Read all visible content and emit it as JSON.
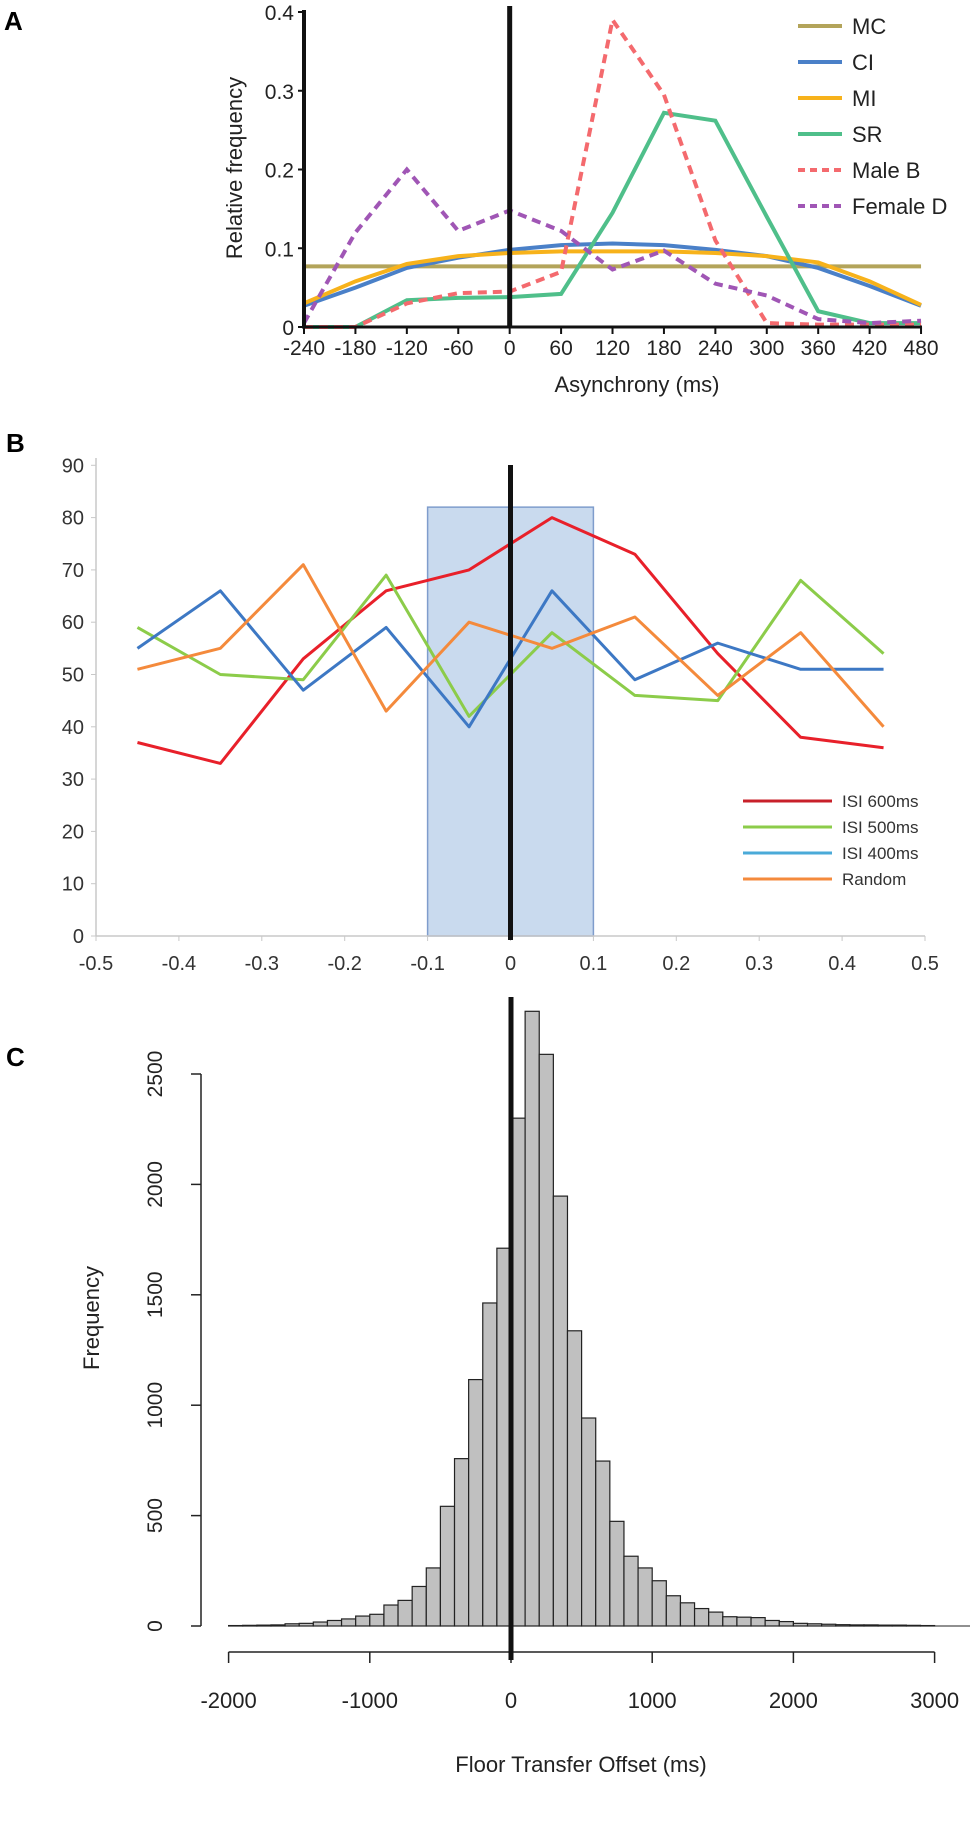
{
  "chart_data": [
    {
      "panel": "A",
      "type": "line",
      "xlabel": "Asynchrony (ms)",
      "ylabel": "Relative frequency",
      "xlim": [
        -240,
        480
      ],
      "ylim": [
        0,
        0.4
      ],
      "x": [
        -240,
        -180,
        -120,
        -60,
        0,
        60,
        120,
        180,
        240,
        300,
        360,
        420,
        480
      ],
      "xticks": [
        "-240",
        "-180",
        "-120",
        "-60",
        "0",
        "60",
        "120",
        "180",
        "240",
        "300",
        "360",
        "420",
        "480"
      ],
      "yticks": [
        0,
        0.1,
        0.2,
        0.3,
        0.4
      ],
      "ytick_labels": [
        "0",
        "0.1",
        "0.2",
        "0.3",
        "0.4"
      ],
      "vline": 0,
      "legend_position": "top-right",
      "series": [
        {
          "name": "MC",
          "color": "#b3a45a",
          "dashed": false,
          "values": [
            0.077,
            0.077,
            0.077,
            0.077,
            0.077,
            0.077,
            0.077,
            0.077,
            0.077,
            0.077,
            0.077,
            0.077,
            0.077
          ]
        },
        {
          "name": "CI",
          "color": "#4a80c8",
          "dashed": false,
          "values": [
            0.027,
            0.05,
            0.075,
            0.088,
            0.098,
            0.104,
            0.106,
            0.104,
            0.098,
            0.09,
            0.075,
            0.052,
            0.027
          ]
        },
        {
          "name": "MI",
          "color": "#f7b21b",
          "dashed": false,
          "values": [
            0.03,
            0.058,
            0.08,
            0.09,
            0.094,
            0.096,
            0.096,
            0.096,
            0.094,
            0.09,
            0.082,
            0.058,
            0.028
          ]
        },
        {
          "name": "SR",
          "color": "#4fbf8a",
          "dashed": false,
          "values": [
            0,
            0,
            0.034,
            0.037,
            0.038,
            0.042,
            0.145,
            0.272,
            0.262,
            0.14,
            0.02,
            0.005,
            0.005
          ]
        },
        {
          "name": "Male B",
          "color": "#f46a6e",
          "dashed": true,
          "values": [
            0,
            0,
            0.03,
            0.043,
            0.045,
            0.07,
            0.39,
            0.295,
            0.11,
            0.005,
            0.003,
            0.003,
            0.003
          ]
        },
        {
          "name": "Female D",
          "color": "#a056b5",
          "dashed": true,
          "values": [
            0.005,
            0.12,
            0.2,
            0.122,
            0.148,
            0.122,
            0.073,
            0.097,
            0.055,
            0.04,
            0.01,
            0.005,
            0.008
          ]
        }
      ]
    },
    {
      "panel": "B",
      "type": "line",
      "xlabel": "",
      "ylabel": "",
      "xlim": [
        -0.5,
        0.5
      ],
      "ylim": [
        0,
        90
      ],
      "x": [
        -0.45,
        -0.35,
        -0.25,
        -0.15,
        -0.05,
        0.05,
        0.15,
        0.25,
        0.35,
        0.45
      ],
      "xticks": [
        "-0.5",
        "-0.4",
        "-0.3",
        "-0.2",
        "-0.1",
        "0",
        "0.1",
        "0.2",
        "0.3",
        "0.4",
        "0.5"
      ],
      "yticks": [
        "0",
        "10",
        "20",
        "30",
        "40",
        "50",
        "60",
        "70",
        "80",
        "90"
      ],
      "vline": 0,
      "shaded_region": {
        "x": [
          -0.1,
          0.1
        ],
        "y": [
          0,
          82
        ],
        "color": "#c9daee"
      },
      "legend_position": "bottom-right",
      "series": [
        {
          "name": "ISI 600ms",
          "color": "#e8202a",
          "legend_color": "#c8202a",
          "values": [
            37,
            33,
            53,
            66,
            70,
            80,
            73,
            54,
            38,
            36
          ]
        },
        {
          "name": "ISI 500ms",
          "color": "#8ccc4a",
          "legend_color": "#8ccc4a",
          "values": [
            59,
            50,
            49,
            69,
            42,
            58,
            46,
            45,
            68,
            54
          ]
        },
        {
          "name": "ISI 400ms",
          "color": "#3d78c4",
          "legend_color": "#4aaad8",
          "values": [
            55,
            66,
            47,
            59,
            40,
            66,
            49,
            56,
            51,
            51
          ]
        },
        {
          "name": "Random",
          "color": "#f48a3c",
          "legend_color": "#f48a3c",
          "values": [
            51,
            55,
            71,
            43,
            60,
            55,
            61,
            46,
            58,
            40
          ]
        }
      ]
    },
    {
      "panel": "C",
      "type": "bar",
      "subtype": "histogram",
      "xlabel": "Floor Transfer Offset (ms)",
      "ylabel": "Frequency",
      "xlim": [
        -2000,
        3000
      ],
      "ylim": [
        0,
        2500
      ],
      "xticks": [
        "-2000",
        "-1000",
        "0",
        "1000",
        "2000",
        "3000"
      ],
      "yticks": [
        "0",
        "500",
        "1000",
        "1500",
        "2000",
        "2500"
      ],
      "bin_width": 100,
      "bin_start": -2000,
      "bar_color": "#c0c0c0",
      "vline": 0,
      "values": [
        2,
        3,
        4,
        5,
        10,
        12,
        18,
        25,
        32,
        45,
        53,
        95,
        116,
        179,
        263,
        542,
        758,
        1116,
        1463,
        1711,
        2300,
        2784,
        2589,
        1947,
        1337,
        942,
        747,
        474,
        316,
        263,
        205,
        137,
        105,
        79,
        63,
        42,
        40,
        38,
        25,
        20,
        12,
        10,
        8,
        6,
        5,
        5,
        4,
        4,
        3,
        2
      ]
    }
  ]
}
